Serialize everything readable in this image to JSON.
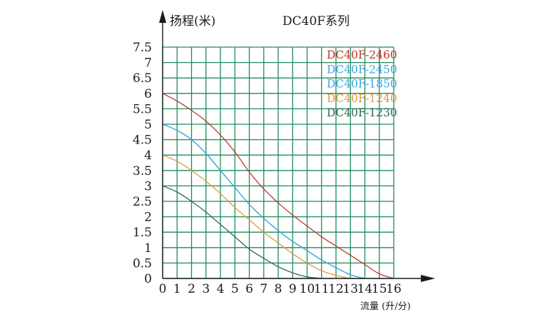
{
  "chart_data": {
    "type": "line",
    "title": "DC40F系列",
    "ylabel": "扬程(米)",
    "xlabel": "流量 (升/分)",
    "xlim": [
      0,
      16
    ],
    "ylim": [
      0,
      7.5
    ],
    "x_ticks": [
      "0",
      "1",
      "2",
      "3",
      "4",
      "5",
      "6",
      "7",
      "8",
      "9",
      "10",
      "11",
      "12",
      "13",
      "14",
      "15",
      "16"
    ],
    "y_ticks": [
      "0",
      "0.5",
      "1",
      "1.5",
      "2",
      "2.5",
      "3",
      "3.5",
      "4",
      "4.5",
      "5",
      "5.5",
      "6",
      "6.5",
      "7",
      "7.5"
    ],
    "grid": true,
    "legend_position": "top-right",
    "colors": {
      "grid": "#1f8a5c",
      "axis": "#1a1a1a"
    },
    "series": [
      {
        "name": "DC40F-2460",
        "color": "#c0392b",
        "x": [
          0,
          1,
          2,
          3,
          4,
          5,
          6,
          7,
          8,
          9,
          10,
          11,
          12,
          13,
          14,
          15,
          16
        ],
        "y": [
          6.0,
          5.75,
          5.45,
          5.1,
          4.65,
          4.1,
          3.45,
          2.9,
          2.45,
          2.05,
          1.7,
          1.35,
          1.05,
          0.75,
          0.45,
          0.15,
          0.0
        ]
      },
      {
        "name": "DC40F-2450",
        "color": "#3aa9e0",
        "x": [
          0,
          1,
          2,
          3,
          4,
          5,
          6,
          7,
          8,
          9,
          10,
          11,
          12,
          13,
          14
        ],
        "y": [
          5.0,
          4.8,
          4.5,
          4.05,
          3.5,
          2.95,
          2.4,
          1.95,
          1.55,
          1.2,
          0.9,
          0.6,
          0.35,
          0.12,
          0.0
        ]
      },
      {
        "name": "DC40F-1850",
        "color": "#3aa9e0",
        "x": [
          0,
          1,
          2,
          3,
          4,
          5,
          6,
          7,
          8,
          9,
          10,
          11,
          12,
          13,
          14
        ],
        "y": [
          5.0,
          4.8,
          4.5,
          4.05,
          3.5,
          2.95,
          2.4,
          1.95,
          1.55,
          1.2,
          0.9,
          0.6,
          0.35,
          0.12,
          0.0
        ]
      },
      {
        "name": "DC40F-1240",
        "color": "#e39a3a",
        "x": [
          0,
          1,
          2,
          3,
          4,
          5,
          6,
          7,
          8,
          9,
          10,
          11,
          12,
          13
        ],
        "y": [
          4.0,
          3.8,
          3.5,
          3.15,
          2.75,
          2.3,
          1.9,
          1.5,
          1.15,
          0.8,
          0.5,
          0.25,
          0.1,
          0.0
        ]
      },
      {
        "name": "DC40F-1230",
        "color": "#2e6b4f",
        "x": [
          0,
          1,
          2,
          3,
          4,
          5,
          6,
          7,
          8,
          9,
          10,
          11
        ],
        "y": [
          3.0,
          2.8,
          2.5,
          2.15,
          1.75,
          1.35,
          0.95,
          0.65,
          0.38,
          0.18,
          0.05,
          0.0
        ]
      }
    ]
  }
}
